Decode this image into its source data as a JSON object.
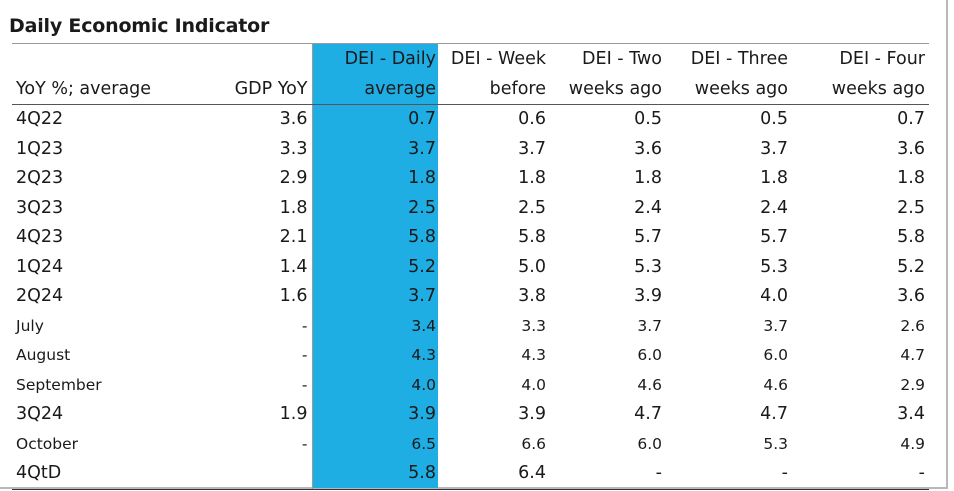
{
  "title": "Daily Economic Indicator",
  "headers": {
    "row1": [
      "",
      "",
      "DEI - Daily",
      "DEI - Week",
      "DEI - Two",
      "DEI - Three",
      "DEI - Four"
    ],
    "row2": [
      "YoY %; average",
      "GDP YoY",
      "average",
      "before",
      "weeks ago",
      "weeks ago",
      "weeks ago"
    ]
  },
  "rows": [
    {
      "label": "4Q22",
      "gdp": "3.6",
      "daily": "0.7",
      "week": "0.6",
      "two": "0.5",
      "three": "0.5",
      "four": "0.7"
    },
    {
      "label": "1Q23",
      "gdp": "3.3",
      "daily": "3.7",
      "week": "3.7",
      "two": "3.6",
      "three": "3.7",
      "four": "3.6"
    },
    {
      "label": "2Q23",
      "gdp": "2.9",
      "daily": "1.8",
      "week": "1.8",
      "two": "1.8",
      "three": "1.8",
      "four": "1.8"
    },
    {
      "label": "3Q23",
      "gdp": "1.8",
      "daily": "2.5",
      "week": "2.5",
      "two": "2.4",
      "three": "2.4",
      "four": "2.5"
    },
    {
      "label": "4Q23",
      "gdp": "2.1",
      "daily": "5.8",
      "week": "5.8",
      "two": "5.7",
      "three": "5.7",
      "four": "5.8"
    },
    {
      "label": "1Q24",
      "gdp": "1.4",
      "daily": "5.2",
      "week": "5.0",
      "two": "5.3",
      "three": "5.3",
      "four": "5.2"
    },
    {
      "label": "2Q24",
      "gdp": "1.6",
      "daily": "3.7",
      "week": "3.8",
      "two": "3.9",
      "three": "4.0",
      "four": "3.6"
    },
    {
      "label": "July",
      "gdp": "-",
      "daily": "3.4",
      "week": "3.3",
      "two": "3.7",
      "three": "3.7",
      "four": "2.6"
    },
    {
      "label": "August",
      "gdp": "-",
      "daily": "4.3",
      "week": "4.3",
      "two": "6.0",
      "three": "6.0",
      "four": "4.7"
    },
    {
      "label": "September",
      "gdp": "-",
      "daily": "4.0",
      "week": "4.0",
      "two": "4.6",
      "three": "4.6",
      "four": "2.9"
    },
    {
      "label": "3Q24",
      "gdp": "1.9",
      "daily": "3.9",
      "week": "3.9",
      "two": "4.7",
      "three": "4.7",
      "four": "3.4"
    },
    {
      "label": "October",
      "gdp": "-",
      "daily": "6.5",
      "week": "6.6",
      "two": "6.0",
      "three": "5.3",
      "four": "4.9"
    },
    {
      "label": "4QtD",
      "gdp": "",
      "daily": "5.8",
      "week": "6.4",
      "two": "-",
      "three": "-",
      "four": "-"
    }
  ],
  "colors": {
    "highlight": "#1eaee4"
  }
}
